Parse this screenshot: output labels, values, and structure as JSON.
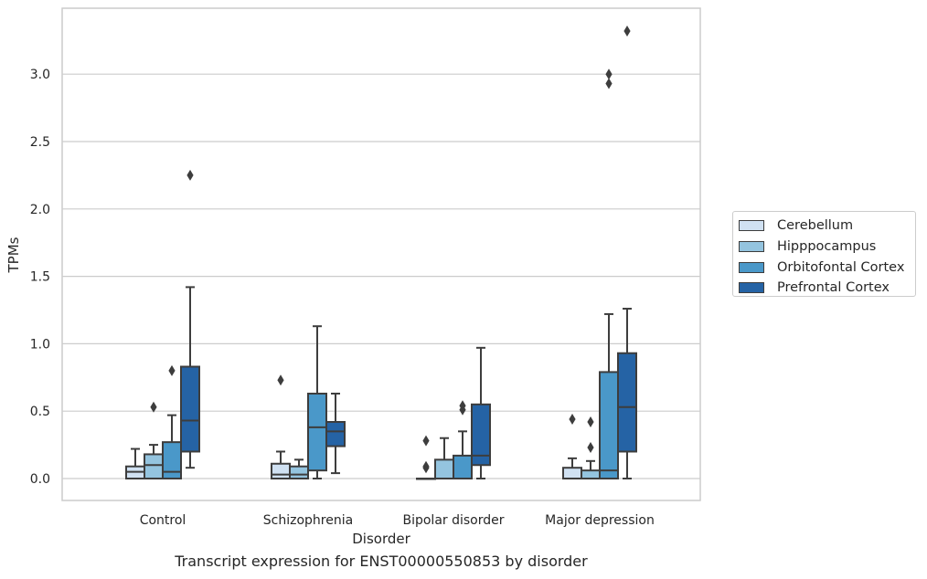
{
  "caption": "Transcript expression for ENST00000550853 by disorder",
  "chart_data": {
    "type": "boxplot",
    "title": "",
    "xlabel": "Disorder",
    "ylabel": "TPMs",
    "ylim": [
      -0.16,
      3.48
    ],
    "yticks": [
      0.0,
      0.5,
      1.0,
      1.5,
      2.0,
      2.5,
      3.0
    ],
    "ytick_labels": [
      "0.0",
      "0.5",
      "1.0",
      "1.5",
      "2.0",
      "2.5",
      "3.0"
    ],
    "grid": "horizontal",
    "legend_position": "right",
    "categories": [
      "Control",
      "Schizophrenia",
      "Bipolar disorder",
      "Major depression"
    ],
    "series": [
      {
        "name": "Cerebellum",
        "color": "#d0e1f2",
        "boxes": [
          {
            "whislo": 0.0,
            "q1": 0.0,
            "med": 0.05,
            "q3": 0.09,
            "whishi": 0.22,
            "fliers": []
          },
          {
            "whislo": 0.0,
            "q1": 0.0,
            "med": 0.03,
            "q3": 0.11,
            "whishi": 0.2,
            "fliers": [
              0.73
            ]
          },
          {
            "whislo": 0.0,
            "q1": 0.0,
            "med": 0.0,
            "q3": 0.0,
            "whishi": 0.0,
            "fliers": [
              0.08,
              0.09,
              0.28
            ]
          },
          {
            "whislo": 0.0,
            "q1": 0.0,
            "med": 0.0,
            "q3": 0.08,
            "whishi": 0.15,
            "fliers": [
              0.44
            ]
          }
        ]
      },
      {
        "name": "Hipppocampus",
        "color": "#94c4df",
        "boxes": [
          {
            "whislo": 0.0,
            "q1": 0.0,
            "med": 0.1,
            "q3": 0.18,
            "whishi": 0.25,
            "fliers": [
              0.53
            ]
          },
          {
            "whislo": 0.0,
            "q1": 0.0,
            "med": 0.03,
            "q3": 0.09,
            "whishi": 0.14,
            "fliers": []
          },
          {
            "whislo": 0.0,
            "q1": 0.0,
            "med": 0.0,
            "q3": 0.14,
            "whishi": 0.3,
            "fliers": []
          },
          {
            "whislo": 0.0,
            "q1": 0.0,
            "med": 0.0,
            "q3": 0.06,
            "whishi": 0.13,
            "fliers": [
              0.23,
              0.42
            ]
          }
        ]
      },
      {
        "name": "Orbitofontal Cortex",
        "color": "#4a98c9",
        "boxes": [
          {
            "whislo": 0.0,
            "q1": 0.0,
            "med": 0.05,
            "q3": 0.27,
            "whishi": 0.47,
            "fliers": [
              0.8
            ]
          },
          {
            "whislo": 0.0,
            "q1": 0.06,
            "med": 0.38,
            "q3": 0.63,
            "whishi": 1.13,
            "fliers": []
          },
          {
            "whislo": 0.0,
            "q1": 0.0,
            "med": 0.0,
            "q3": 0.17,
            "whishi": 0.35,
            "fliers": [
              0.51,
              0.54
            ]
          },
          {
            "whislo": 0.0,
            "q1": 0.0,
            "med": 0.06,
            "q3": 0.79,
            "whishi": 1.22,
            "fliers": [
              2.93,
              3.0
            ]
          }
        ]
      },
      {
        "name": "Prefrontal Cortex",
        "color": "#2563a5",
        "boxes": [
          {
            "whislo": 0.08,
            "q1": 0.2,
            "med": 0.43,
            "q3": 0.83,
            "whishi": 1.42,
            "fliers": [
              2.25
            ]
          },
          {
            "whislo": 0.04,
            "q1": 0.24,
            "med": 0.35,
            "q3": 0.42,
            "whishi": 0.63,
            "fliers": []
          },
          {
            "whislo": 0.0,
            "q1": 0.1,
            "med": 0.17,
            "q3": 0.55,
            "whishi": 0.97,
            "fliers": []
          },
          {
            "whislo": 0.0,
            "q1": 0.2,
            "med": 0.53,
            "q3": 0.93,
            "whishi": 1.26,
            "fliers": [
              3.32
            ]
          }
        ]
      }
    ]
  }
}
